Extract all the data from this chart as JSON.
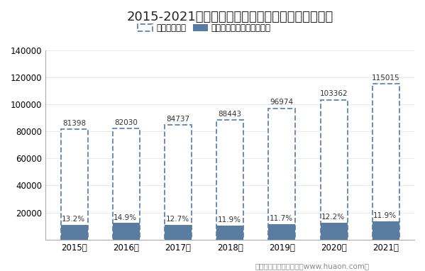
{
  "title": "2015-2021年浙江省企业数量及电子商务企业占比图",
  "years": [
    "2015年",
    "2016年",
    "2017年",
    "2018年",
    "2019年",
    "2020年",
    "2021年"
  ],
  "total_values": [
    81398,
    82030,
    84737,
    88443,
    96974,
    103362,
    115015
  ],
  "percentages": [
    13.2,
    14.9,
    12.7,
    11.9,
    11.7,
    12.2,
    11.9
  ],
  "legend_dashed_label": "企业数（个）",
  "legend_solid_label": "有电子商务交易活动的企业",
  "ylabel_max": 140000,
  "yticks": [
    0,
    20000,
    40000,
    60000,
    80000,
    100000,
    120000,
    140000
  ],
  "dashed_edge_color": "#6a8fb5",
  "solid_bar_color": "#5a7ca0",
  "pct_text_color": "#333333",
  "total_text_color": "#333333",
  "footer": "制图：华经产业研究院（www.huaon.com）",
  "bg_color": "#ffffff"
}
